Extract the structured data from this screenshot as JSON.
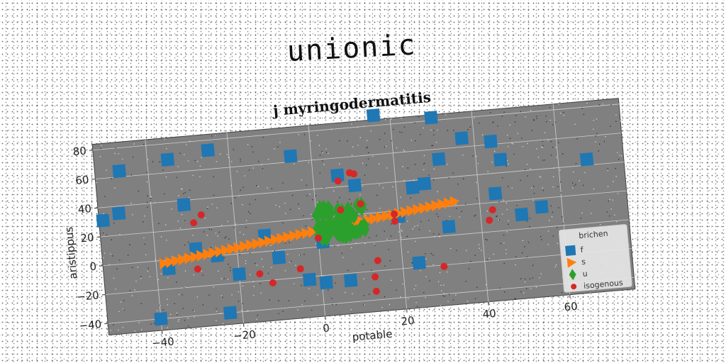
{
  "suptitle": "unionic",
  "chart_data": {
    "type": "scatter",
    "title": "j myringodermatitis",
    "xlabel": "potable",
    "ylabel": "aristippus",
    "xlim": [
      -53,
      76
    ],
    "ylim": [
      -48,
      84
    ],
    "xticks": [
      -40,
      -20,
      0,
      20,
      40,
      60
    ],
    "yticks": [
      -40,
      -20,
      0,
      20,
      40,
      60,
      80
    ],
    "grid": true,
    "legend": {
      "title": "brichen",
      "placement": "lower-right"
    },
    "colors": {
      "axes_bg": "#808080",
      "f": "#1f77b4",
      "s": "#ff7f0e",
      "u": "#2ca02c",
      "isogenous": "#d62728"
    },
    "series": [
      {
        "name": "f",
        "marker": "square",
        "points": [
          [
            -47,
            64
          ],
          [
            -35,
            69
          ],
          [
            -25,
            73
          ],
          [
            -52,
            31
          ],
          [
            -48,
            35
          ],
          [
            -32,
            37
          ],
          [
            -5,
            64
          ],
          [
            6,
            48
          ],
          [
            10,
            40
          ],
          [
            16,
            87
          ],
          [
            24,
            35
          ],
          [
            27,
            37
          ],
          [
            30,
            82
          ],
          [
            31,
            53
          ],
          [
            37,
            66
          ],
          [
            44,
            62
          ],
          [
            46,
            49
          ],
          [
            44,
            26
          ],
          [
            50,
            10
          ],
          [
            55,
            14
          ],
          [
            67,
            44
          ],
          [
            -37,
            -6
          ],
          [
            -30,
            6
          ],
          [
            -25,
            0
          ],
          [
            -13,
            11
          ],
          [
            -10,
            -5
          ],
          [
            -20,
            -14
          ],
          [
            -3,
            -22
          ],
          [
            1,
            -25
          ],
          [
            7,
            -25
          ],
          [
            1,
            3
          ],
          [
            32,
            6
          ],
          [
            24,
            -17
          ],
          [
            -40,
            -40
          ],
          [
            -23,
            -40
          ],
          [
            20,
            16
          ]
        ]
      },
      {
        "name": "s",
        "marker": "triangle-right",
        "line": {
          "x": [
            -38,
            34
          ],
          "y": [
            -2,
            23
          ]
        }
      },
      {
        "name": "u",
        "marker": "diamond",
        "cluster": {
          "x": [
            0,
            12
          ],
          "y": [
            5,
            27
          ]
        }
      },
      {
        "name": "isogenous",
        "marker": "circle",
        "points": [
          [
            -28,
            29
          ],
          [
            -30,
            24
          ],
          [
            -30,
            -8
          ],
          [
            -15,
            -15
          ],
          [
            -12,
            -22
          ],
          [
            -5,
            -14
          ],
          [
            0,
            6
          ],
          [
            6,
            44
          ],
          [
            9,
            49
          ],
          [
            10,
            48
          ],
          [
            11,
            27
          ],
          [
            6,
            24
          ],
          [
            19,
            18
          ],
          [
            19,
            13
          ],
          [
            14,
            -13
          ],
          [
            13,
            -24
          ],
          [
            13,
            -34
          ],
          [
            30,
            -21
          ],
          [
            43,
            15
          ],
          [
            42,
            8
          ]
        ]
      }
    ]
  }
}
